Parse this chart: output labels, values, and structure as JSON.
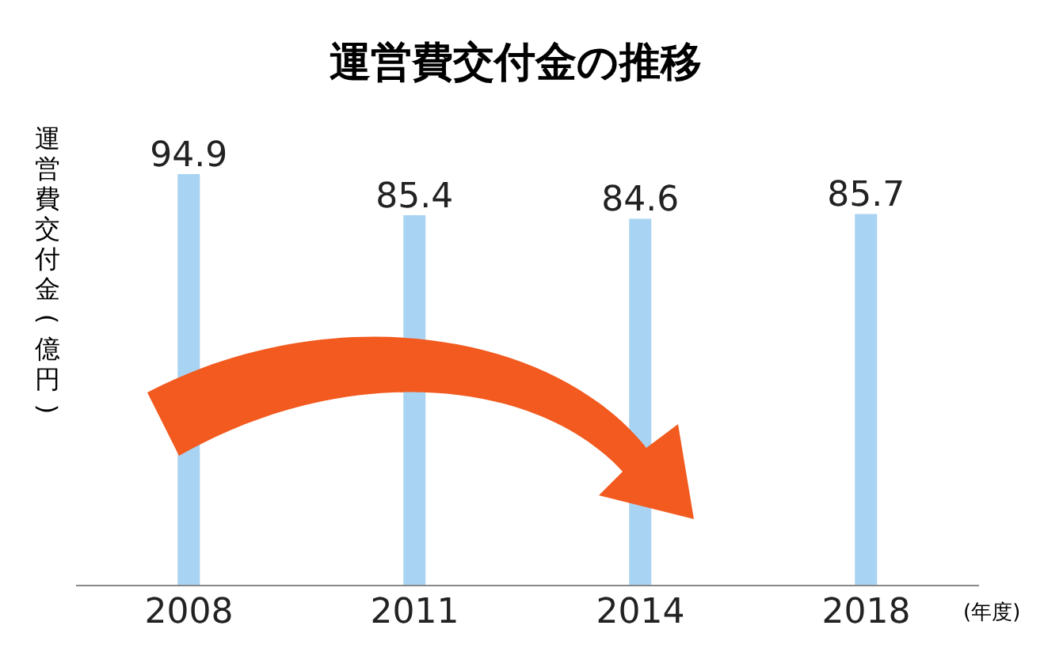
{
  "chart_data": {
    "type": "bar",
    "title": "運営費交付金の推移",
    "xlabel": "(年度)",
    "ylabel": "運営費交付金(億円)",
    "categories": [
      "2008",
      "2011",
      "2014",
      "2018"
    ],
    "values": [
      94.9,
      85.4,
      84.6,
      85.7
    ],
    "color": "#a9d3f2",
    "data_labels": true
  }
}
